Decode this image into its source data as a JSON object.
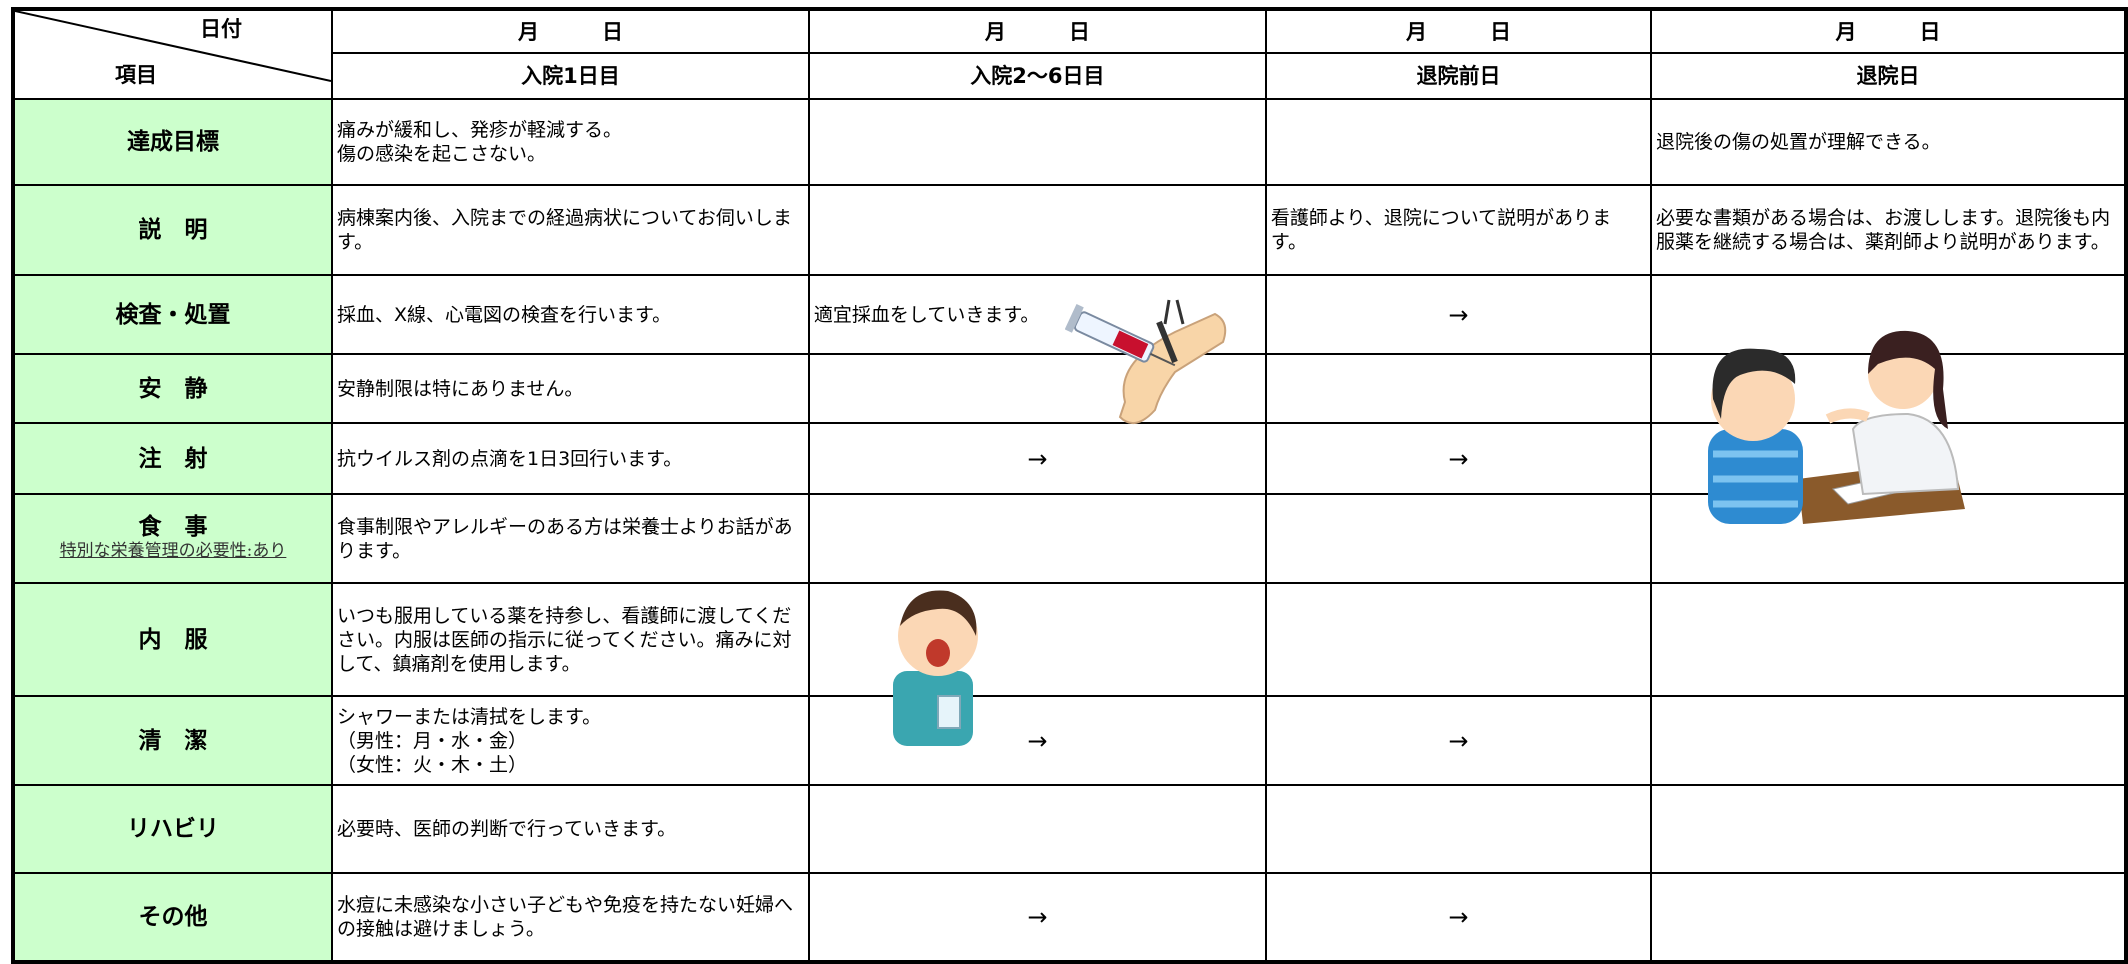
{
  "header": {
    "corner_top": "日付",
    "corner_bottom": "項目",
    "dates": [
      "月　　　日",
      "月　　　日",
      "月　　　日",
      "月　　　日"
    ],
    "days": [
      "入院1日目",
      "入院2～6日目",
      "退院前日",
      "退院日"
    ]
  },
  "rows": [
    {
      "item": "達成目標",
      "cells": [
        "痛みが緩和し、発疹が軽減する。\n傷の感染を起こさない。",
        null,
        null,
        "退院後の傷の処置が理解できる。"
      ]
    },
    {
      "item": "説　明",
      "cells": [
        "病棟案内後、入院までの経過病状についてお伺いします。",
        null,
        "看護師より、退院について説明があります。",
        "必要な書類がある場合は、お渡しします。退院後も内服薬を継続する場合は、薬剤師より説明があります。"
      ]
    },
    {
      "item": "検査・処置",
      "cells": [
        "採血、X線、心電図の検査を行います。",
        "適宜採血をしていきます。",
        "→",
        null
      ]
    },
    {
      "item": "安　静",
      "cells": [
        "安静制限は特にありません。",
        null,
        null,
        null
      ]
    },
    {
      "item": "注　射",
      "cells": [
        "抗ウイルス剤の点滴を1日3回行います。",
        "→",
        "→",
        null
      ]
    },
    {
      "item": "食　事",
      "note": "特別な栄養管理の必要性:あり",
      "cells": [
        "食事制限やアレルギーのある方は栄養士よりお話があります。",
        null,
        null,
        null
      ]
    },
    {
      "item": "内　服",
      "cells": [
        "いつも服用している薬を持参し、看護師に渡してください。内服は医師の指示に従ってください。痛みに対して、鎮痛剤を使用します。",
        null,
        null,
        null
      ]
    },
    {
      "item": "清　潔",
      "cells": [
        "シャワーまたは清拭をします。\n（男性：月・水・金）\n（女性：火・木・土）",
        "→",
        "→",
        null
      ]
    },
    {
      "item": "リハビリ",
      "cells": [
        "必要時、医師の判断で行っていきます。",
        null,
        null,
        null
      ]
    },
    {
      "item": "その他",
      "cells": [
        "水痘に未感染な小さい子どもや免疫を持たない妊婦への接触は避けましょう。",
        "→",
        "→",
        null
      ]
    }
  ]
}
